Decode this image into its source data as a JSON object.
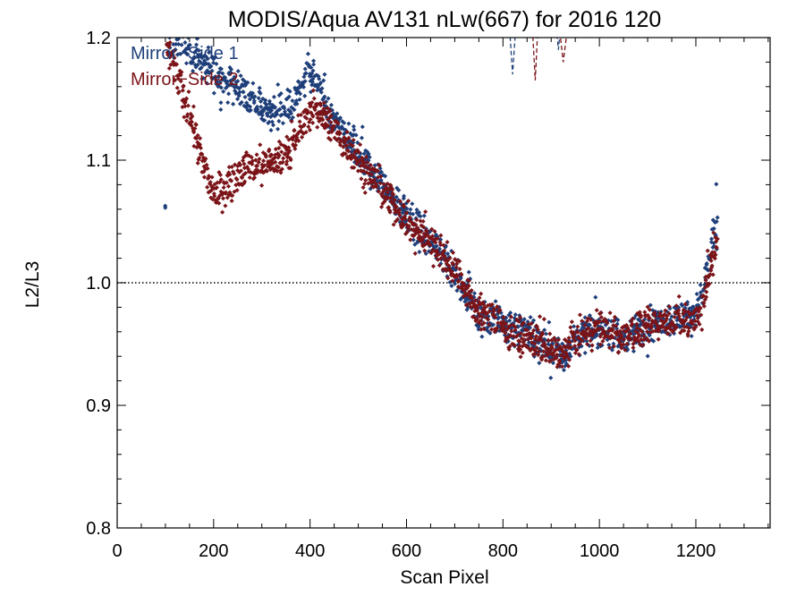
{
  "chart_data": {
    "type": "scatter",
    "title": "MODIS/Aqua AV131 nLw(667) for 2016 120",
    "xlabel": "Scan Pixel",
    "ylabel": "L2/L3",
    "xlim": [
      0,
      1354
    ],
    "ylim": [
      0.8,
      1.2
    ],
    "x_ticks": [
      0,
      200,
      400,
      600,
      800,
      1000,
      1200
    ],
    "x_tick_labels": [
      "0",
      "200",
      "400",
      "600",
      "800",
      "1000",
      "1200"
    ],
    "y_ticks": [
      0.8,
      0.9,
      1.0,
      1.1,
      1.2
    ],
    "y_tick_labels": [
      "0.8",
      "0.9",
      "1.0",
      "1.1",
      "1.2"
    ],
    "reference_line": {
      "y": 1.0,
      "style": "dotted",
      "color": "#000000"
    },
    "legend_position": "top-left",
    "series": [
      {
        "name": "Mirror−Side 1",
        "color": "#1f3f7a",
        "trend": [
          [
            100,
            1.21
          ],
          [
            130,
            1.2
          ],
          [
            160,
            1.185
          ],
          [
            190,
            1.175
          ],
          [
            220,
            1.165
          ],
          [
            250,
            1.16
          ],
          [
            280,
            1.15
          ],
          [
            310,
            1.14
          ],
          [
            340,
            1.14
          ],
          [
            360,
            1.14
          ],
          [
            380,
            1.16
          ],
          [
            395,
            1.175
          ],
          [
            410,
            1.165
          ],
          [
            430,
            1.145
          ],
          [
            450,
            1.13
          ],
          [
            480,
            1.115
          ],
          [
            510,
            1.1
          ],
          [
            540,
            1.085
          ],
          [
            570,
            1.07
          ],
          [
            600,
            1.055
          ],
          [
            630,
            1.04
          ],
          [
            660,
            1.03
          ],
          [
            690,
            1.015
          ],
          [
            710,
            1.0
          ],
          [
            730,
            0.99
          ],
          [
            750,
            0.975
          ],
          [
            770,
            0.97
          ],
          [
            790,
            0.97
          ],
          [
            810,
            0.965
          ],
          [
            840,
            0.96
          ],
          [
            860,
            0.955
          ],
          [
            880,
            0.95
          ],
          [
            900,
            0.945
          ],
          [
            920,
            0.94
          ],
          [
            950,
            0.955
          ],
          [
            980,
            0.96
          ],
          [
            1010,
            0.965
          ],
          [
            1040,
            0.955
          ],
          [
            1070,
            0.96
          ],
          [
            1100,
            0.965
          ],
          [
            1130,
            0.97
          ],
          [
            1160,
            0.97
          ],
          [
            1190,
            0.975
          ],
          [
            1210,
            0.985
          ],
          [
            1230,
            1.02
          ],
          [
            1245,
            1.05
          ]
        ],
        "spread": 0.013,
        "dashed_fragments": [
          [
            [
              810,
              1.23
            ],
            [
              820,
              1.17
            ],
            [
              830,
              1.23
            ]
          ],
          [
            [
              908,
              1.22
            ],
            [
              915,
              1.19
            ],
            [
              922,
              1.22
            ]
          ]
        ]
      },
      {
        "name": "Mirror−Side 2",
        "color": "#7b1418",
        "trend": [
          [
            100,
            1.2
          ],
          [
            130,
            1.16
          ],
          [
            160,
            1.125
          ],
          [
            185,
            1.09
          ],
          [
            200,
            1.07
          ],
          [
            215,
            1.075
          ],
          [
            240,
            1.085
          ],
          [
            270,
            1.095
          ],
          [
            300,
            1.095
          ],
          [
            330,
            1.1
          ],
          [
            360,
            1.11
          ],
          [
            380,
            1.125
          ],
          [
            400,
            1.14
          ],
          [
            420,
            1.14
          ],
          [
            450,
            1.125
          ],
          [
            480,
            1.11
          ],
          [
            510,
            1.095
          ],
          [
            540,
            1.08
          ],
          [
            570,
            1.065
          ],
          [
            600,
            1.05
          ],
          [
            630,
            1.04
          ],
          [
            660,
            1.03
          ],
          [
            690,
            1.015
          ],
          [
            710,
            1.005
          ],
          [
            730,
            0.99
          ],
          [
            750,
            0.975
          ],
          [
            770,
            0.975
          ],
          [
            790,
            0.97
          ],
          [
            810,
            0.96
          ],
          [
            840,
            0.955
          ],
          [
            860,
            0.955
          ],
          [
            880,
            0.95
          ],
          [
            900,
            0.945
          ],
          [
            920,
            0.94
          ],
          [
            950,
            0.955
          ],
          [
            980,
            0.96
          ],
          [
            1010,
            0.965
          ],
          [
            1040,
            0.955
          ],
          [
            1070,
            0.96
          ],
          [
            1100,
            0.965
          ],
          [
            1130,
            0.97
          ],
          [
            1160,
            0.97
          ],
          [
            1190,
            0.97
          ],
          [
            1210,
            0.975
          ],
          [
            1230,
            1.01
          ],
          [
            1245,
            1.04
          ]
        ],
        "spread": 0.013,
        "dashed_fragments": [
          [
            [
              858,
              1.23
            ],
            [
              867,
              1.165
            ],
            [
              875,
              1.23
            ]
          ],
          [
            [
              918,
              1.205
            ],
            [
              925,
              1.18
            ],
            [
              933,
              1.205
            ]
          ]
        ]
      }
    ]
  }
}
